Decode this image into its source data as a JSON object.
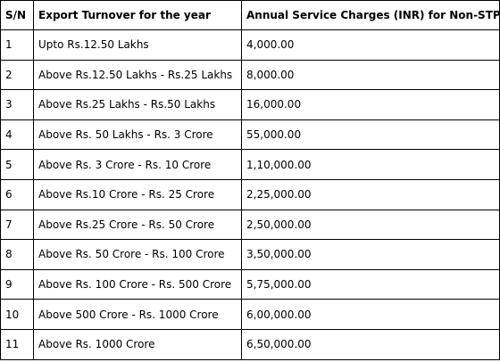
{
  "table": {
    "headers": [
      "S/N",
      "Export Turnover for the year",
      "Annual Service Charges (INR) for Non-STP Units"
    ],
    "rows": [
      {
        "sn": "1",
        "turnover": "Upto Rs.12.50 Lakhs",
        "charges": "4,000.00"
      },
      {
        "sn": "2",
        "turnover": "Above Rs.12.50 Lakhs - Rs.25 Lakhs",
        "charges": "8,000.00"
      },
      {
        "sn": "3",
        "turnover": "Above Rs.25 Lakhs - Rs.50 Lakhs",
        "charges": "16,000.00"
      },
      {
        "sn": "4",
        "turnover": "Above Rs. 50 Lakhs - Rs. 3 Crore",
        "charges": "55,000.00"
      },
      {
        "sn": "5",
        "turnover": "Above Rs. 3 Crore - Rs. 10 Crore",
        "charges": "1,10,000.00"
      },
      {
        "sn": "6",
        "turnover": "Above Rs.10 Crore - Rs. 25 Crore",
        "charges": "2,25,000.00"
      },
      {
        "sn": "7",
        "turnover": "Above Rs.25 Crore - Rs. 50 Crore",
        "charges": "2,50,000.00"
      },
      {
        "sn": "8",
        "turnover": "Above Rs. 50 Crore - Rs. 100 Crore",
        "charges": "3,50,000.00"
      },
      {
        "sn": "9",
        "turnover": "Above Rs. 100 Crore - Rs. 500 Crore",
        "charges": "5,75,000.00"
      },
      {
        "sn": "10",
        "turnover": "Above 500 Crore - Rs. 1000 Crore",
        "charges": "6,00,000.00"
      },
      {
        "sn": "11",
        "turnover": "Above Rs. 1000 Crore",
        "charges": "6,50,000.00"
      }
    ]
  }
}
